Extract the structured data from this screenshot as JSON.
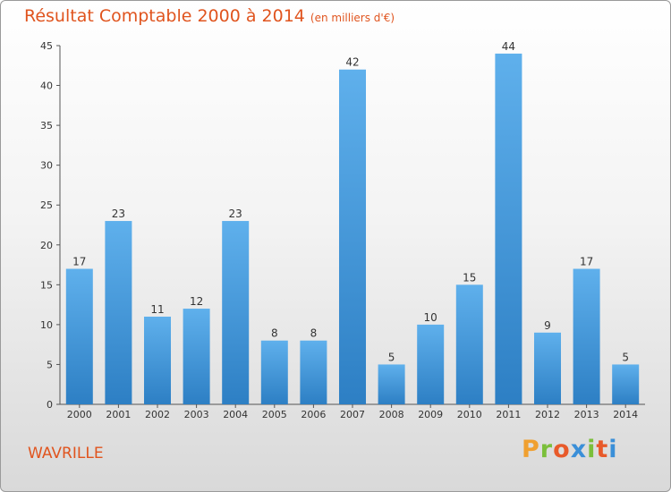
{
  "chart_data": {
    "type": "bar",
    "title": "Résultat Comptable 2000 à 2014",
    "subtitle": "(en milliers d'€)",
    "categories": [
      "2000",
      "2001",
      "2002",
      "2003",
      "2004",
      "2005",
      "2006",
      "2007",
      "2008",
      "2009",
      "2010",
      "2011",
      "2012",
      "2013",
      "2014"
    ],
    "values": [
      17,
      23,
      11,
      12,
      23,
      8,
      8,
      42,
      5,
      10,
      15,
      44,
      9,
      17,
      5
    ],
    "ylim": [
      0,
      45
    ],
    "yticks": [
      0,
      5,
      10,
      15,
      20,
      25,
      30,
      35,
      40,
      45
    ],
    "grid": false,
    "bar_color": "#4a9fe0"
  },
  "commune": "WAVRILLE",
  "brand": {
    "letters": [
      "P",
      "r",
      "o",
      "x",
      "i",
      "t",
      "i"
    ],
    "colors": [
      "#f0a030",
      "#7bbf3b",
      "#e85a2a",
      "#3a8fd8",
      "#7bbf3b",
      "#e85a2a",
      "#3a8fd8"
    ]
  }
}
